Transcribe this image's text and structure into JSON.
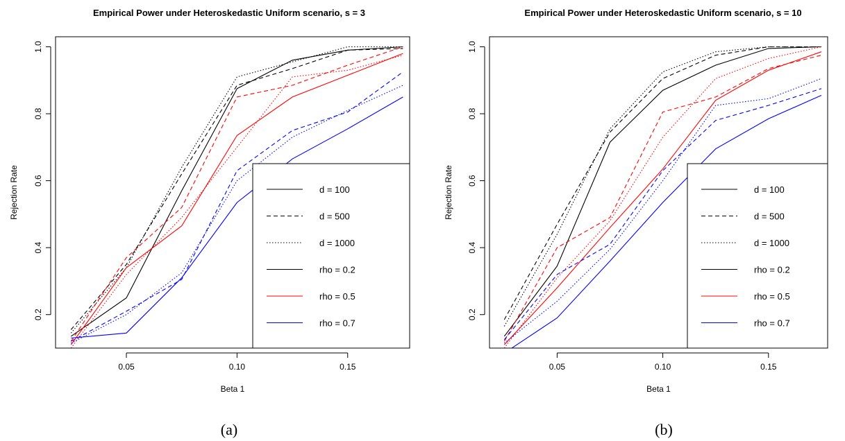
{
  "chart_data": [
    {
      "type": "line",
      "title": "Empirical Power under Heteroskedastic Uniform scenario, s = 3",
      "xlabel": "Beta 1",
      "ylabel": "Rejection Rate",
      "caption": "(a)",
      "x": [
        0.025,
        0.05,
        0.075,
        0.1,
        0.125,
        0.15,
        0.175
      ],
      "xticks": [
        0.05,
        0.1,
        0.15
      ],
      "xtick_labels": [
        "0.05",
        "0.10",
        "0.15"
      ],
      "yticks": [
        0.2,
        0.4,
        0.6,
        0.8,
        1.0
      ],
      "ytick_labels": [
        "0.2",
        "0.4",
        "0.6",
        "0.8",
        "1.0"
      ],
      "xlim": [
        0.018,
        0.178
      ],
      "ylim": [
        0.1,
        1.03
      ],
      "series": [
        {
          "rho": "0.2",
          "d": "100",
          "color": "#000000",
          "dash": "solid",
          "values": [
            0.135,
            0.25,
            0.57,
            0.875,
            0.96,
            0.99,
            1.0
          ]
        },
        {
          "rho": "0.2",
          "d": "500",
          "color": "#000000",
          "dash": "dashed",
          "values": [
            0.155,
            0.35,
            0.62,
            0.885,
            0.935,
            0.99,
            0.995
          ]
        },
        {
          "rho": "0.2",
          "d": "1000",
          "color": "#000000",
          "dash": "dotted",
          "values": [
            0.145,
            0.34,
            0.64,
            0.91,
            0.955,
            1.0,
            1.0
          ]
        },
        {
          "rho": "0.5",
          "d": "100",
          "color": "#ff0000",
          "dash": "solid",
          "values": [
            0.11,
            0.34,
            0.465,
            0.735,
            0.85,
            0.915,
            0.98
          ]
        },
        {
          "rho": "0.5",
          "d": "500",
          "color": "#ff0000",
          "dash": "dashed",
          "values": [
            0.12,
            0.37,
            0.52,
            0.85,
            0.885,
            0.945,
            1.0
          ]
        },
        {
          "rho": "0.5",
          "d": "1000",
          "color": "#ff0000",
          "dash": "dotted",
          "values": [
            0.1,
            0.32,
            0.49,
            0.7,
            0.91,
            0.93,
            0.975
          ]
        },
        {
          "rho": "0.7",
          "d": "100",
          "color": "#0000ff",
          "dash": "solid",
          "values": [
            0.13,
            0.145,
            0.31,
            0.535,
            0.665,
            0.755,
            0.85
          ]
        },
        {
          "rho": "0.7",
          "d": "500",
          "color": "#0000ff",
          "dash": "dashed",
          "values": [
            0.12,
            0.21,
            0.305,
            0.63,
            0.75,
            0.805,
            0.925
          ]
        },
        {
          "rho": "0.7",
          "d": "1000",
          "color": "#0000ff",
          "dash": "dotted",
          "values": [
            0.115,
            0.2,
            0.325,
            0.6,
            0.73,
            0.81,
            0.885
          ]
        }
      ],
      "legend": {
        "placement": "bottom-right",
        "entries": [
          {
            "label": "d = 100",
            "color": "#000000",
            "dash": "solid"
          },
          {
            "label": "d = 500",
            "color": "#000000",
            "dash": "dashed"
          },
          {
            "label": "d = 1000",
            "color": "#000000",
            "dash": "dotted"
          },
          {
            "label": "rho = 0.2",
            "color": "#000000",
            "dash": "solid"
          },
          {
            "label": "rho = 0.5",
            "color": "#ff0000",
            "dash": "solid"
          },
          {
            "label": "rho = 0.7",
            "color": "#0000ff",
            "dash": "solid"
          }
        ]
      }
    },
    {
      "type": "line",
      "title": "Empirical Power under Heteroskedastic Uniform scenario, s = 10",
      "xlabel": "Beta 1",
      "ylabel": "Rejection Rate",
      "caption": "(b)",
      "x": [
        0.025,
        0.05,
        0.075,
        0.1,
        0.125,
        0.15,
        0.175
      ],
      "xticks": [
        0.05,
        0.1,
        0.15
      ],
      "xtick_labels": [
        "0.05",
        "0.10",
        "0.15"
      ],
      "yticks": [
        0.2,
        0.4,
        0.6,
        0.8,
        1.0
      ],
      "ytick_labels": [
        "0.2",
        "0.4",
        "0.6",
        "0.8",
        "1.0"
      ],
      "xlim": [
        0.018,
        0.178
      ],
      "ylim": [
        0.1,
        1.03
      ],
      "series": [
        {
          "rho": "0.2",
          "d": "100",
          "color": "#000000",
          "dash": "solid",
          "values": [
            0.135,
            0.345,
            0.715,
            0.87,
            0.945,
            0.995,
            1.0
          ]
        },
        {
          "rho": "0.2",
          "d": "500",
          "color": "#000000",
          "dash": "dashed",
          "values": [
            0.185,
            0.47,
            0.745,
            0.905,
            0.975,
            1.0,
            1.0
          ]
        },
        {
          "rho": "0.2",
          "d": "1000",
          "color": "#000000",
          "dash": "dotted",
          "values": [
            0.165,
            0.44,
            0.755,
            0.925,
            0.985,
            1.0,
            1.0
          ]
        },
        {
          "rho": "0.5",
          "d": "100",
          "color": "#ff0000",
          "dash": "solid",
          "values": [
            0.11,
            0.28,
            0.46,
            0.635,
            0.84,
            0.93,
            0.985
          ]
        },
        {
          "rho": "0.5",
          "d": "500",
          "color": "#ff0000",
          "dash": "dashed",
          "values": [
            0.12,
            0.4,
            0.49,
            0.805,
            0.85,
            0.935,
            0.975
          ]
        },
        {
          "rho": "0.5",
          "d": "1000",
          "color": "#ff0000",
          "dash": "dotted",
          "values": [
            0.1,
            0.31,
            0.48,
            0.73,
            0.905,
            0.965,
            1.0
          ]
        },
        {
          "rho": "0.7",
          "d": "100",
          "color": "#0000ff",
          "dash": "solid",
          "values": [
            0.085,
            0.19,
            0.36,
            0.535,
            0.695,
            0.785,
            0.855
          ]
        },
        {
          "rho": "0.7",
          "d": "500",
          "color": "#0000ff",
          "dash": "dashed",
          "values": [
            0.125,
            0.32,
            0.41,
            0.63,
            0.78,
            0.825,
            0.875
          ]
        },
        {
          "rho": "0.7",
          "d": "1000",
          "color": "#0000ff",
          "dash": "dotted",
          "values": [
            0.115,
            0.24,
            0.395,
            0.6,
            0.825,
            0.845,
            0.905
          ]
        }
      ],
      "legend": {
        "placement": "bottom-right",
        "entries": [
          {
            "label": "d = 100",
            "color": "#000000",
            "dash": "solid"
          },
          {
            "label": "d = 500",
            "color": "#000000",
            "dash": "dashed"
          },
          {
            "label": "d = 1000",
            "color": "#000000",
            "dash": "dotted"
          },
          {
            "label": "rho = 0.2",
            "color": "#000000",
            "dash": "solid"
          },
          {
            "label": "rho = 0.5",
            "color": "#ff0000",
            "dash": "solid"
          },
          {
            "label": "rho = 0.7",
            "color": "#0000ff",
            "dash": "solid"
          }
        ]
      }
    }
  ]
}
